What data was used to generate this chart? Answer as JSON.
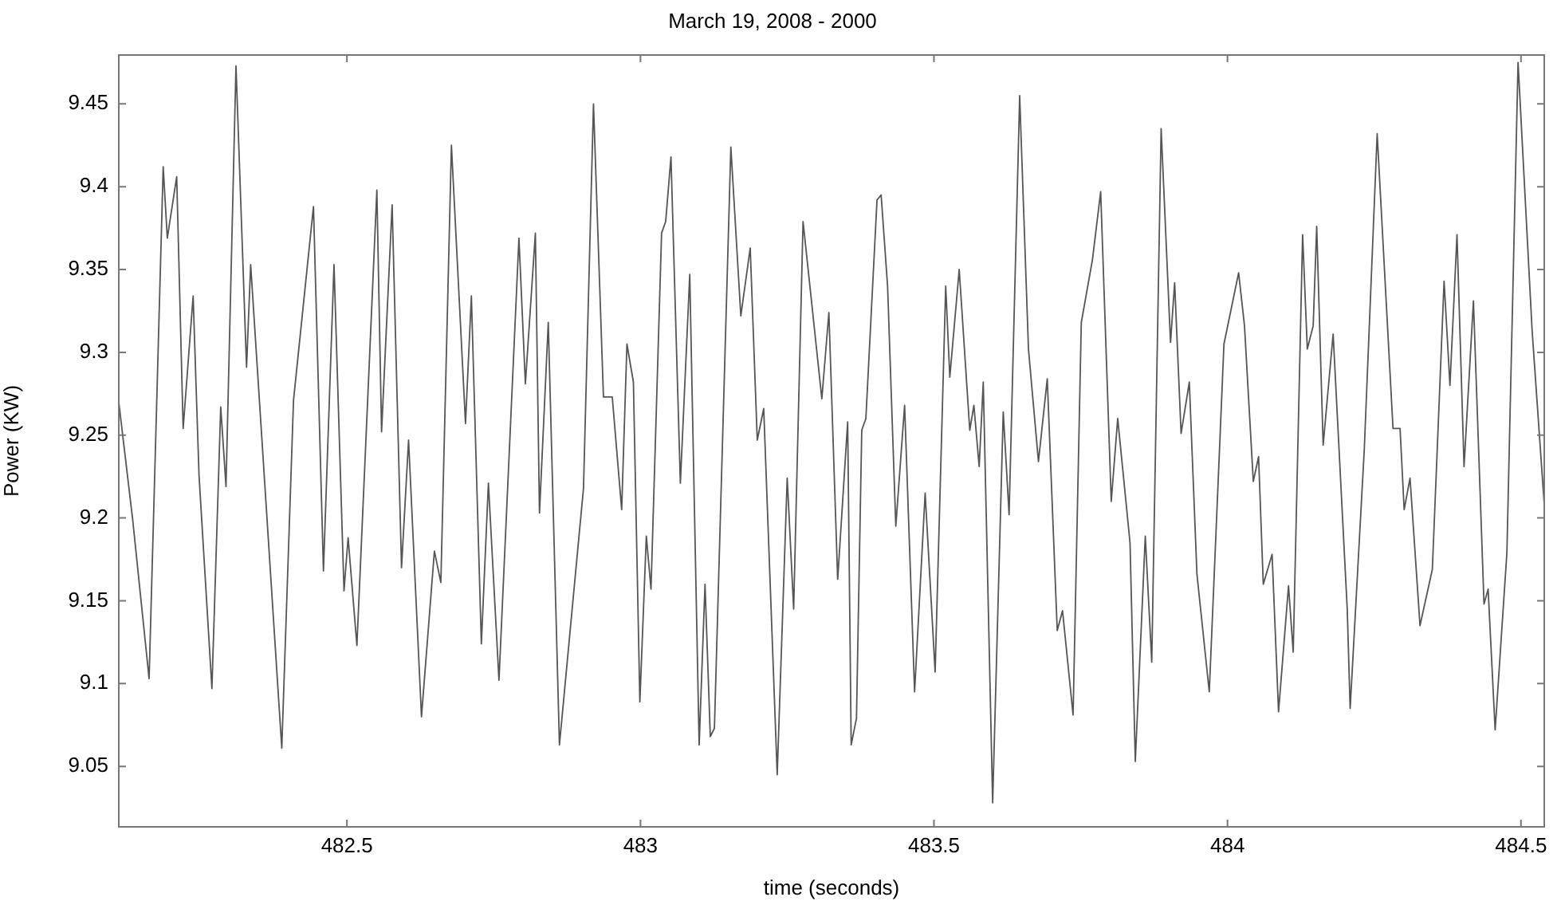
{
  "chart_data": {
    "type": "line",
    "title": "March 19, 2008 - 2000",
    "xlabel": "time (seconds)",
    "ylabel": "Power (KW)",
    "xlim": [
      482.11,
      484.541
    ],
    "xticks": [
      482.5,
      483,
      483.5,
      484,
      484.5
    ],
    "ylim": [
      9.013,
      9.48
    ],
    "yticks": [
      9.05,
      9.1,
      9.15,
      9.2,
      9.25,
      9.3,
      9.35,
      9.4,
      9.45
    ],
    "grid": false,
    "legend": false,
    "marker": "none",
    "line_style": "solid",
    "series": [
      {
        "color": "#555555",
        "x": [
          482.111,
          482.135,
          482.163,
          482.187,
          482.194,
          482.21,
          482.221,
          482.238,
          482.248,
          482.27,
          482.285,
          482.294,
          482.311,
          482.329,
          482.336,
          482.389,
          482.409,
          482.443,
          482.46,
          482.478,
          482.495,
          482.502,
          482.517,
          482.551,
          482.559,
          482.577,
          482.593,
          482.605,
          482.627,
          482.649,
          482.66,
          482.678,
          482.702,
          482.712,
          482.729,
          482.741,
          482.759,
          482.793,
          482.804,
          482.821,
          482.828,
          482.843,
          482.862,
          482.903,
          482.92,
          482.937,
          482.952,
          482.968,
          482.977,
          482.988,
          482.999,
          483.01,
          483.018,
          483.036,
          483.043,
          483.052,
          483.068,
          483.084,
          483.1,
          483.11,
          483.119,
          483.126,
          483.154,
          483.171,
          483.187,
          483.199,
          483.21,
          483.233,
          483.25,
          483.261,
          483.277,
          483.309,
          483.321,
          483.336,
          483.353,
          483.359,
          483.368,
          483.377,
          483.384,
          483.403,
          483.41,
          483.421,
          483.435,
          483.45,
          483.467,
          483.485,
          483.502,
          483.52,
          483.527,
          483.543,
          483.561,
          483.568,
          483.577,
          483.584,
          483.6,
          483.618,
          483.628,
          483.646,
          483.661,
          483.678,
          483.693,
          483.71,
          483.719,
          483.737,
          483.751,
          483.77,
          483.784,
          483.802,
          483.813,
          483.834,
          483.843,
          483.86,
          483.871,
          483.887,
          483.903,
          483.91,
          483.921,
          483.935,
          483.948,
          483.969,
          483.994,
          484.019,
          484.029,
          484.044,
          484.053,
          484.061,
          484.076,
          484.087,
          484.104,
          484.112,
          484.128,
          484.136,
          484.146,
          484.152,
          484.163,
          484.18,
          484.204,
          484.209,
          484.233,
          484.255,
          484.282,
          484.294,
          484.301,
          484.311,
          484.328,
          484.349,
          484.369,
          484.379,
          484.391,
          484.403,
          484.419,
          484.437,
          484.444,
          484.456,
          484.476,
          484.495,
          484.519,
          484.541
        ],
        "values": [
          9.271,
          9.199,
          9.103,
          9.412,
          9.369,
          9.406,
          9.254,
          9.334,
          9.226,
          9.097,
          9.267,
          9.219,
          9.473,
          9.291,
          9.353,
          9.061,
          9.271,
          9.388,
          9.168,
          9.353,
          9.156,
          9.188,
          9.123,
          9.398,
          9.252,
          9.389,
          9.17,
          9.247,
          9.08,
          9.18,
          9.161,
          9.425,
          9.257,
          9.334,
          9.124,
          9.221,
          9.102,
          9.369,
          9.281,
          9.372,
          9.203,
          9.318,
          9.063,
          9.218,
          9.45,
          9.273,
          9.273,
          9.205,
          9.305,
          9.282,
          9.089,
          9.189,
          9.157,
          9.372,
          9.379,
          9.418,
          9.221,
          9.347,
          9.063,
          9.16,
          9.068,
          9.073,
          9.424,
          9.322,
          9.363,
          9.247,
          9.266,
          9.045,
          9.224,
          9.145,
          9.379,
          9.272,
          9.324,
          9.163,
          9.258,
          9.063,
          9.079,
          9.253,
          9.26,
          9.392,
          9.395,
          9.34,
          9.195,
          9.268,
          9.095,
          9.215,
          9.107,
          9.34,
          9.285,
          9.35,
          9.253,
          9.268,
          9.231,
          9.282,
          9.028,
          9.264,
          9.202,
          9.455,
          9.302,
          9.234,
          9.284,
          9.132,
          9.144,
          9.081,
          9.318,
          9.356,
          9.397,
          9.21,
          9.26,
          9.185,
          9.053,
          9.189,
          9.113,
          9.435,
          9.306,
          9.342,
          9.251,
          9.282,
          9.166,
          9.095,
          9.305,
          9.348,
          9.316,
          9.222,
          9.237,
          9.16,
          9.178,
          9.083,
          9.159,
          9.119,
          9.371,
          9.302,
          9.316,
          9.376,
          9.244,
          9.311,
          9.145,
          9.085,
          9.241,
          9.432,
          9.254,
          9.254,
          9.205,
          9.224,
          9.135,
          9.169,
          9.343,
          9.28,
          9.371,
          9.231,
          9.331,
          9.148,
          9.157,
          9.072,
          9.179,
          9.475,
          9.313,
          9.201
        ]
      }
    ]
  }
}
